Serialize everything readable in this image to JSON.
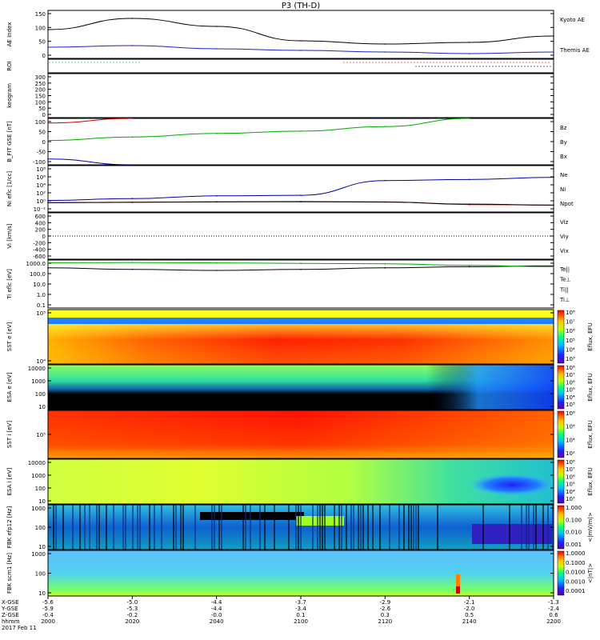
{
  "title": "P3 (TH-D)",
  "time_axis": {
    "ticks": [
      "2000",
      "2020",
      "2040",
      "2100",
      "2120",
      "2140",
      "2200"
    ],
    "row_labels": [
      "X-GSE",
      "Y-GSE",
      "Z-GSE",
      "hhmm",
      "2017 Feb 11"
    ],
    "xgse": [
      "-5.6",
      "-5.0",
      "-4.4",
      "-3.7",
      "-2.9",
      "-2.1",
      "-1.3"
    ],
    "ygse": [
      "-5.9",
      "-5.3",
      "-4.4",
      "-3.4",
      "-2.6",
      "-2.0",
      "-2.4"
    ],
    "zgse": [
      "-0.4",
      "-0.2",
      "-0.0",
      "0.1",
      "0.3",
      "0.5",
      "0.6"
    ]
  },
  "panels": [
    {
      "id": "ae",
      "ylabel": "AE Index",
      "ticks": [
        "150",
        "100",
        "50",
        "0"
      ],
      "legend": [
        {
          "text": "Kyoto AE",
          "color": "#2020c0"
        },
        {
          "text": "Themis AE",
          "color": "#000000"
        }
      ]
    },
    {
      "id": "roi",
      "ylabel": "ROI",
      "ticks": [],
      "legend": []
    },
    {
      "id": "keogram",
      "ylabel": "keogram",
      "ticks": [
        "300",
        "250",
        "200",
        "150",
        "100",
        "50",
        "0"
      ],
      "legend": []
    },
    {
      "id": "bfit",
      "ylabel": "B_FIT GSE [nT]",
      "ticks": [
        "100",
        "50",
        "0",
        "-50",
        "-100"
      ],
      "legend": [
        {
          "text": "Bz",
          "color": "#cc0000"
        },
        {
          "text": "By",
          "color": "#00aa00"
        },
        {
          "text": "Bx",
          "color": "#0000aa"
        }
      ]
    },
    {
      "id": "ni",
      "ylabel": "Ni eflc [1/cc]",
      "ticks": [
        "10⁸",
        "10⁶",
        "10⁴",
        "10²",
        "10⁰",
        "10⁻²"
      ],
      "legend": [
        {
          "text": "Ne",
          "color": "#cc0000"
        },
        {
          "text": "Ni",
          "color": "#000000"
        },
        {
          "text": "Npot",
          "color": "#0000aa"
        }
      ]
    },
    {
      "id": "vi",
      "ylabel": "Vi [km/s]",
      "ticks": [
        "600",
        "400",
        "200",
        "0",
        "-200",
        "-400",
        "-600"
      ],
      "legend": [
        {
          "text": "Viz",
          "color": "#cc0000"
        },
        {
          "text": "Viy",
          "color": "#00aa00"
        },
        {
          "text": "Vix",
          "color": "#0000aa"
        }
      ]
    },
    {
      "id": "ti",
      "ylabel": "Ti eflc [eV]",
      "ticks": [
        "1000.0",
        "100.0",
        "10.0",
        "1.0",
        "0.1"
      ],
      "legend": [
        {
          "text": "Te||",
          "color": "#000000"
        },
        {
          "text": "Te⊥",
          "color": "#cc0000"
        },
        {
          "text": "Ti||",
          "color": "#00aa00"
        },
        {
          "text": "Ti⊥",
          "color": "#0000aa"
        }
      ]
    },
    {
      "id": "sst_e",
      "ylabel": "SST e [eV]",
      "ticks": [
        "10⁵",
        "10⁴"
      ],
      "legend": []
    },
    {
      "id": "esa_e",
      "ylabel": "ESA e [eV]",
      "ticks": [
        "10000",
        "1000",
        "100",
        "10"
      ],
      "legend": []
    },
    {
      "id": "sst_i",
      "ylabel": "SST i [eV]",
      "ticks": [
        "10⁵"
      ],
      "legend": []
    },
    {
      "id": "esa_i",
      "ylabel": "ESA i [eV]",
      "ticks": [
        "10000",
        "1000",
        "100",
        "10"
      ],
      "legend": []
    },
    {
      "id": "fbk_e",
      "ylabel": "FBK efp12 [Hz]",
      "ticks": [
        "1000",
        "100",
        "10"
      ],
      "legend": []
    },
    {
      "id": "fbk_b",
      "ylabel": "FBK scm1 [Hz]",
      "ticks": [
        "1000",
        "100",
        "10"
      ],
      "legend": []
    }
  ],
  "colorbars": [
    {
      "label": "Eflux, EFU",
      "ticks": [
        "10⁸",
        "10⁷",
        "10⁶",
        "10⁵",
        "10⁴",
        "10³"
      ]
    },
    {
      "label": "Eflux, EFU",
      "ticks": [
        "10⁸",
        "10⁷",
        "10⁶",
        "10⁵",
        "10⁴",
        "10³"
      ]
    },
    {
      "label": "Eflux, EFU",
      "ticks": [
        "10⁸",
        "10⁶",
        "10⁴",
        "10²"
      ]
    },
    {
      "label": "Eflux, EFU",
      "ticks": [
        "10⁸",
        "10⁷",
        "10⁶",
        "10⁵",
        "10⁴",
        "10³"
      ]
    },
    {
      "label": "<|mV/m|>",
      "ticks": [
        "1.000",
        "0.100",
        "0.010",
        "0.001"
      ]
    },
    {
      "label": "<|nT|>",
      "ticks": [
        "1.0000",
        "0.1000",
        "0.0100",
        "0.0010",
        "0.0001"
      ]
    }
  ],
  "chart_data": {
    "type": "line",
    "title": "P3 (TH-D)",
    "xlabel": "hhmm",
    "x": [
      "2000",
      "2020",
      "2040",
      "2100",
      "2120",
      "2140",
      "2200"
    ],
    "series": [
      {
        "name": "Themis AE",
        "panel": "ae",
        "values": [
          90,
          125,
          100,
          55,
          45,
          50,
          70
        ]
      },
      {
        "name": "Kyoto AE",
        "panel": "ae",
        "values": [
          35,
          40,
          30,
          25,
          20,
          15,
          20
        ]
      },
      {
        "name": "Bz",
        "panel": "bfit",
        "values": [
          80,
          100,
          null,
          null,
          null,
          null,
          null
        ]
      },
      {
        "name": "By",
        "panel": "bfit",
        "values": [
          5,
          20,
          35,
          45,
          65,
          100,
          null
        ]
      },
      {
        "name": "Bx",
        "panel": "bfit",
        "values": [
          -75,
          -100,
          null,
          null,
          null,
          null,
          null
        ]
      },
      {
        "name": "Ne",
        "panel": "ni",
        "values": [
          1,
          1.3,
          1.6,
          1.8,
          1.5,
          0.4,
          0.3
        ]
      },
      {
        "name": "Ni",
        "panel": "ni",
        "values": [
          1,
          1.2,
          1.5,
          1.6,
          1.4,
          0.5,
          0.3
        ]
      },
      {
        "name": "Npot",
        "panel": "ni",
        "values": [
          3,
          8,
          30,
          40,
          60000,
          100000,
          300000
        ]
      },
      {
        "name": "Te||",
        "panel": "ti",
        "values": [
          700,
          500,
          400,
          500,
          700,
          900,
          1100
        ]
      },
      {
        "name": "Ti||",
        "panel": "ti",
        "values": [
          2200,
          2300,
          2100,
          1900,
          1700,
          1200,
          900
        ]
      }
    ],
    "ylim": {
      "ae": [
        0,
        150
      ],
      "bfit": [
        -100,
        100
      ],
      "vi": [
        -600,
        600
      ],
      "ti": [
        0.1,
        1000
      ]
    },
    "scale": {
      "ni": "log",
      "ti": "log"
    },
    "grid": false,
    "legend": "right"
  }
}
